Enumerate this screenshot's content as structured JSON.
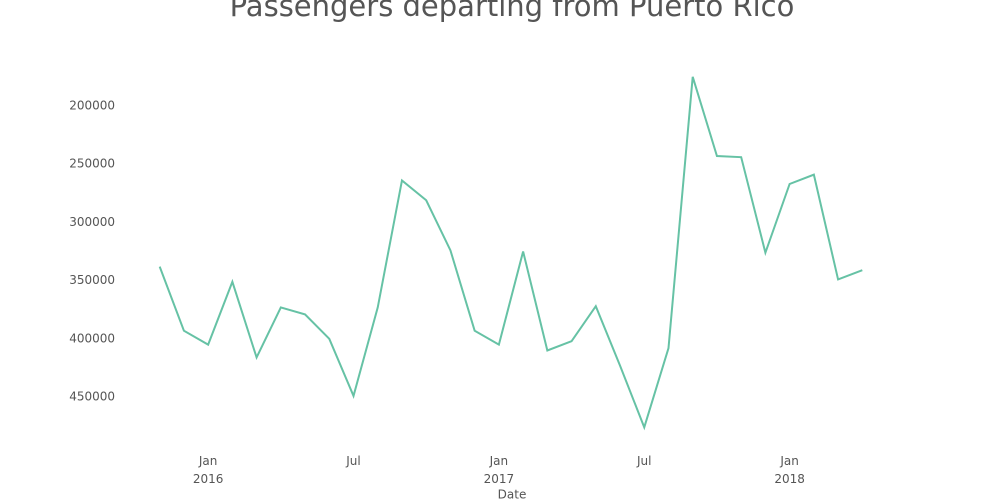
{
  "chart_data": {
    "type": "line",
    "title": "Passengers departing from Puerto Rico",
    "xlabel": "Date",
    "x": [
      "2015-11",
      "2015-12",
      "2016-01",
      "2016-02",
      "2016-03",
      "2016-04",
      "2016-05",
      "2016-06",
      "2016-07",
      "2016-08",
      "2016-09",
      "2016-10",
      "2016-11",
      "2016-12",
      "2017-01",
      "2017-02",
      "2017-03",
      "2017-04",
      "2017-05",
      "2017-06",
      "2017-07",
      "2017-08",
      "2017-09",
      "2017-10",
      "2017-11",
      "2017-12",
      "2018-01",
      "2018-02",
      "2018-03",
      "2018-04"
    ],
    "series": [
      {
        "name": "Passengers",
        "color": "#66c2a5",
        "values": [
          338000,
          393000,
          405000,
          351000,
          416000,
          373000,
          379000,
          400000,
          449000,
          373000,
          264000,
          281000,
          324000,
          393000,
          405000,
          325000,
          410000,
          402000,
          372000,
          423000,
          476000,
          408000,
          175000,
          243000,
          244000,
          326000,
          267000,
          259000,
          349000,
          341000
        ]
      }
    ],
    "xlim": [
      "2015-08",
      "2018-07"
    ],
    "xticks": [
      {
        "value": "2016-01",
        "label": [
          "Jan",
          "2016"
        ]
      },
      {
        "value": "2016-07",
        "label": [
          "Jul"
        ]
      },
      {
        "value": "2017-01",
        "label": [
          "Jan",
          "2017"
        ]
      },
      {
        "value": "2017-07",
        "label": [
          "Jul"
        ]
      },
      {
        "value": "2018-01",
        "label": [
          "Jan",
          "2018"
        ]
      }
    ],
    "ylim": [
      480000,
      170000
    ],
    "yticks": [
      200000,
      250000,
      300000,
      350000,
      400000,
      450000
    ],
    "grid": false
  }
}
